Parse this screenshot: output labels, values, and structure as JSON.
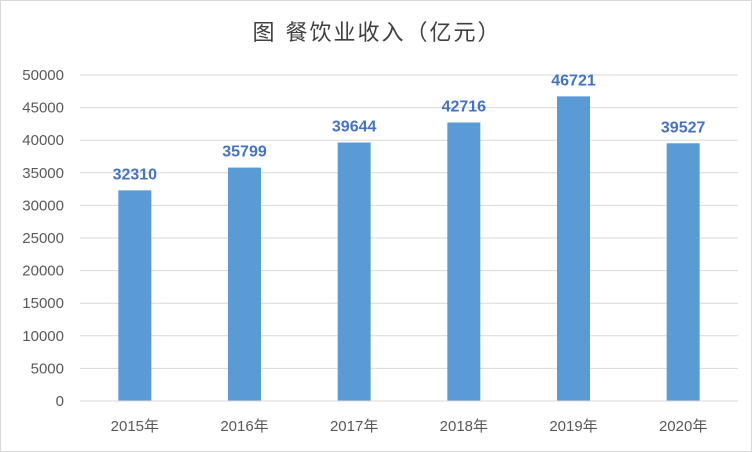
{
  "chart_data": {
    "type": "bar",
    "title": "图 餐饮业收入（亿元）",
    "categories": [
      "2015年",
      "2016年",
      "2017年",
      "2018年",
      "2019年",
      "2020年"
    ],
    "series": [
      {
        "values": [
          32310,
          35799,
          39644,
          42716,
          46721,
          39527
        ]
      }
    ],
    "ylim": [
      0,
      50000
    ],
    "yticks": [
      "0",
      "5000",
      "10000",
      "15000",
      "20000",
      "25000",
      "30000",
      "35000",
      "40000",
      "45000",
      "50000"
    ],
    "grid": true,
    "legend": "none",
    "bar_color": "#5b9bd5",
    "label_color": "#4472c4",
    "grid_color": "#d9d9d9",
    "axis_text_color": "#595959"
  }
}
